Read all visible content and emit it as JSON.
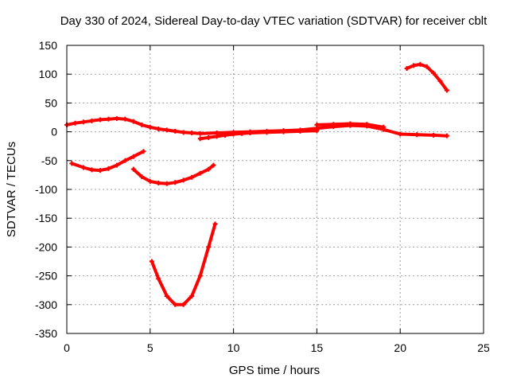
{
  "chart_data": {
    "type": "line",
    "title": "Day 330 of 2024, Sidereal Day-to-day VTEC variation (SDTVAR) for receiver cblt",
    "xlabel": "GPS time / hours",
    "ylabel": "SDTVAR / TECUs",
    "xlim": [
      0,
      25
    ],
    "ylim": [
      -350,
      150
    ],
    "xticks": [
      0,
      5,
      10,
      15,
      20,
      25
    ],
    "yticks": [
      150,
      100,
      50,
      0,
      -50,
      -100,
      -150,
      -200,
      -250,
      -300,
      -350
    ],
    "grid": true,
    "legend": "none",
    "series_color": "#ff0000",
    "series": [
      {
        "name": "arc-main",
        "x": [
          0,
          0.5,
          1,
          1.5,
          2,
          2.5,
          3,
          3.5,
          4,
          4.5,
          5,
          5.5,
          6,
          6.5,
          7,
          7.5,
          8,
          9,
          10,
          11,
          12,
          13,
          14,
          15,
          16,
          17,
          18,
          19,
          20,
          21,
          22,
          22.8
        ],
        "y": [
          12,
          15,
          17,
          19,
          21,
          22,
          23,
          22,
          18,
          12,
          8,
          5,
          3,
          1,
          -1,
          -2,
          -3,
          -2,
          -1,
          0,
          1,
          2,
          3,
          6,
          9,
          11,
          10,
          4,
          -4,
          -5,
          -6,
          -7
        ]
      },
      {
        "name": "arc-scatter",
        "x": [
          8,
          8.5,
          9,
          9.5,
          10,
          10.5,
          11,
          12,
          13,
          14,
          15
        ],
        "y": [
          -12,
          -10,
          -8,
          -6,
          -4,
          -3,
          -2,
          -1,
          0,
          1,
          2
        ]
      },
      {
        "name": "arc-band",
        "x": [
          15,
          16,
          17,
          18,
          19
        ],
        "y": [
          12,
          13,
          14,
          13,
          8
        ]
      },
      {
        "name": "arc-dip-1",
        "x": [
          0.3,
          1,
          1.5,
          2,
          2.5,
          3,
          3.5,
          4,
          4.6
        ],
        "y": [
          -55,
          -62,
          -66,
          -67,
          -64,
          -58,
          -50,
          -43,
          -34
        ]
      },
      {
        "name": "arc-dip-2",
        "x": [
          4,
          4.5,
          5,
          5.5,
          6,
          6.5,
          7,
          7.5,
          8,
          8.5,
          8.8
        ],
        "y": [
          -65,
          -78,
          -86,
          -89,
          -90,
          -88,
          -84,
          -79,
          -72,
          -65,
          -58
        ]
      },
      {
        "name": "arc-deep",
        "x": [
          5.1,
          5.5,
          6,
          6.5,
          7,
          7.5,
          8,
          8.5,
          8.9
        ],
        "y": [
          -225,
          -255,
          -285,
          -300,
          -300,
          -285,
          -250,
          -200,
          -160
        ]
      },
      {
        "name": "arc-high",
        "x": [
          20.4,
          20.8,
          21.2,
          21.6,
          22,
          22.4,
          22.8
        ],
        "y": [
          110,
          115,
          117,
          113,
          102,
          88,
          72
        ]
      }
    ]
  }
}
